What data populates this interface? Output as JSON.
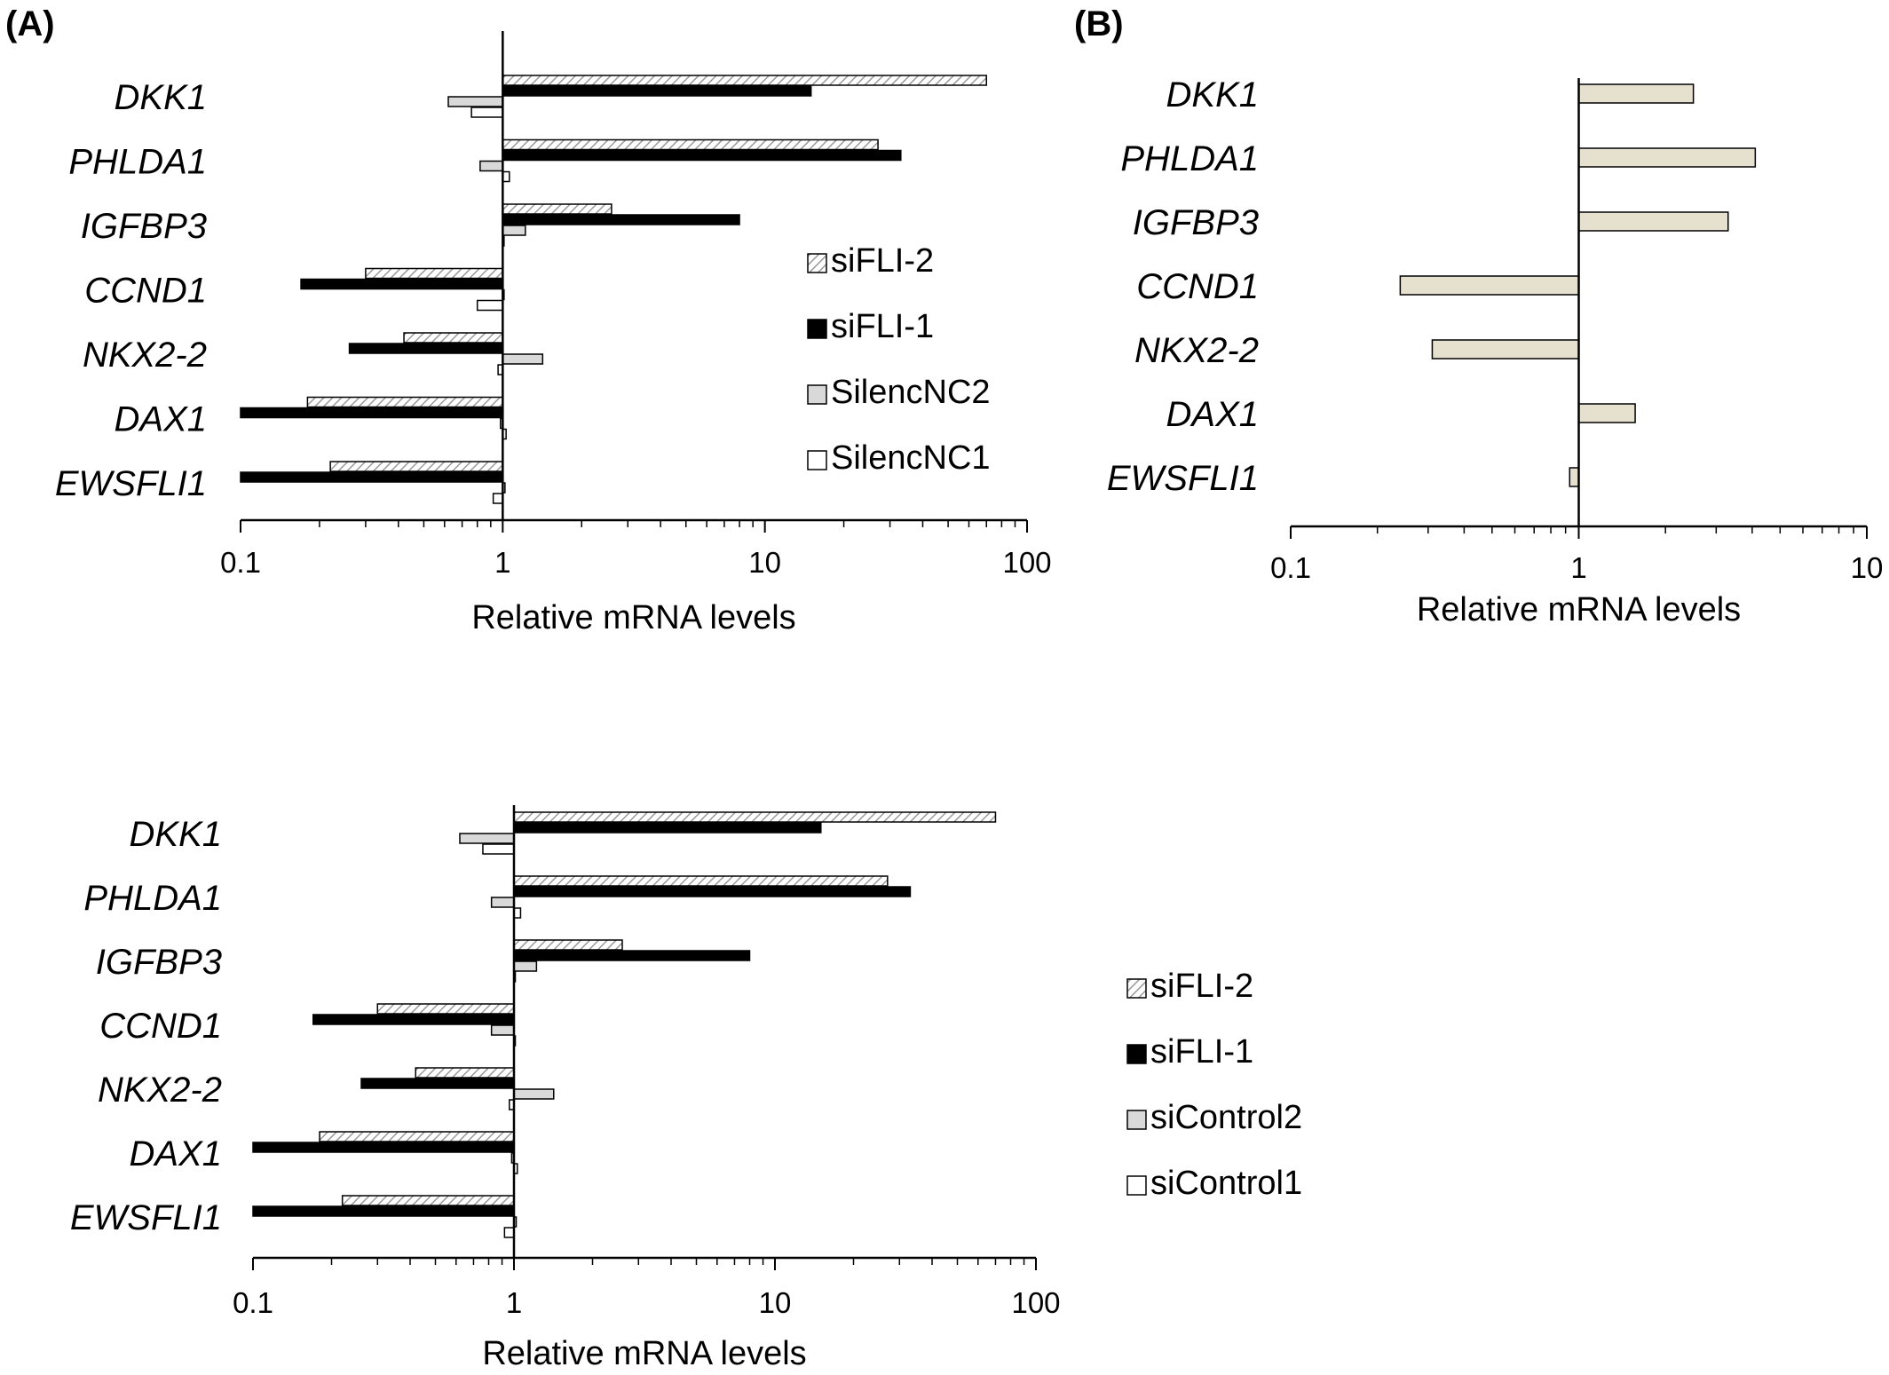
{
  "panels": {
    "a": "(A)",
    "b": "(B)"
  },
  "chart_data": [
    {
      "type": "bar",
      "orientation": "horizontal",
      "x_scale": "log",
      "xlim": [
        0.1,
        100
      ],
      "xticks": [
        "0.1",
        "1",
        "10",
        "100"
      ],
      "xlabel": "Relative mRNA levels",
      "categories": [
        "DKK1",
        "PHLDA1",
        "IGFBP3",
        "CCND1",
        "NKX2-2",
        "DAX1",
        "EWSFLI1"
      ],
      "legend_position": "right",
      "series": [
        {
          "name": "siFLI-2",
          "pattern": "hatched",
          "color": "#d9d9d9",
          "values": [
            70,
            27,
            2.6,
            0.3,
            0.42,
            0.18,
            0.22
          ]
        },
        {
          "name": "siFLI-1",
          "pattern": "solid",
          "color": "#000000",
          "values": [
            15,
            33,
            8,
            0.17,
            0.26,
            0.1,
            0.1
          ]
        },
        {
          "name": "SilencNC2",
          "pattern": "solid",
          "color": "#d9d9d9",
          "values": [
            0.62,
            0.82,
            1.22,
            1,
            1.42,
            0.98,
            1.02
          ]
        },
        {
          "name": "SilencNC1",
          "pattern": "solid",
          "color": "#ffffff",
          "values": [
            0.76,
            1.06,
            1,
            0.8,
            0.96,
            1.03,
            0.92
          ]
        }
      ]
    },
    {
      "type": "bar",
      "orientation": "horizontal",
      "x_scale": "log",
      "xlim": [
        0.1,
        10
      ],
      "xticks": [
        "0.1",
        "1",
        "10"
      ],
      "xlabel": "Relative mRNA levels",
      "categories": [
        "DKK1",
        "PHLDA1",
        "IGFBP3",
        "CCND1",
        "NKX2-2",
        "DAX1",
        "EWSFLI1"
      ],
      "series": [
        {
          "color": "#e6e0ce",
          "values": [
            2.5,
            4.1,
            3.3,
            0.24,
            0.31,
            1.57,
            0.93
          ]
        }
      ]
    },
    {
      "type": "bar",
      "orientation": "horizontal",
      "x_scale": "log",
      "xlim": [
        0.1,
        100
      ],
      "xticks": [
        "0.1",
        "1",
        "10",
        "100"
      ],
      "xlabel": "Relative mRNA levels",
      "categories": [
        "DKK1",
        "PHLDA1",
        "IGFBP3",
        "CCND1",
        "NKX2-2",
        "DAX1",
        "EWSFLI1"
      ],
      "legend_position": "right",
      "series": [
        {
          "name": "siFLI-2",
          "pattern": "hatched",
          "color": "#d9d9d9",
          "values": [
            70,
            27,
            2.6,
            0.3,
            0.42,
            0.18,
            0.22
          ]
        },
        {
          "name": "siFLI-1",
          "pattern": "solid",
          "color": "#000000",
          "values": [
            15,
            33,
            8,
            0.17,
            0.26,
            0.1,
            0.1
          ]
        },
        {
          "name": "siControl2",
          "pattern": "solid",
          "color": "#d9d9d9",
          "values": [
            0.62,
            0.82,
            1.22,
            0.82,
            1.42,
            0.98,
            1.02
          ]
        },
        {
          "name": "siControl1",
          "pattern": "solid",
          "color": "#ffffff",
          "values": [
            0.76,
            1.06,
            1,
            1,
            0.96,
            1.03,
            0.92
          ]
        }
      ]
    }
  ]
}
